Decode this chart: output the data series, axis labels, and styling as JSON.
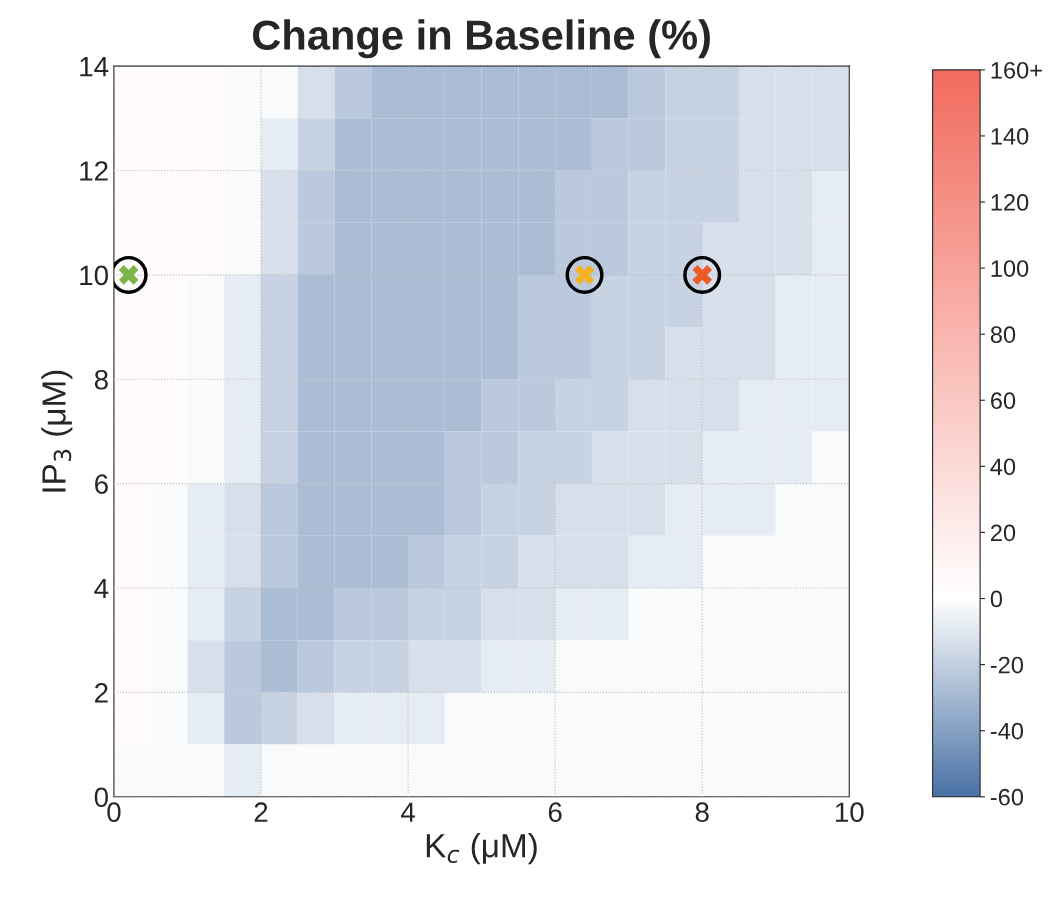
{
  "chart_data": {
    "type": "heatmap",
    "title": "Change in Baseline (%)",
    "xlabel": "K$_{c}$ (μM)",
    "ylabel": "IP$_{3}$ (μM)",
    "x": [
      0.25,
      0.75,
      1.25,
      1.75,
      2.25,
      2.75,
      3.25,
      3.75,
      4.25,
      4.75,
      5.25,
      5.75,
      6.25,
      6.75,
      7.25,
      7.75,
      8.25,
      8.75,
      9.25,
      9.75
    ],
    "y": [
      13.5,
      12.5,
      11.5,
      10.5,
      9.5,
      8.5,
      7.5,
      6.5,
      5.5,
      4.5,
      3.5,
      2.5,
      1.5,
      0.5
    ],
    "cells": [
      [
        4,
        4,
        4,
        -2,
        -2,
        -13,
        -23,
        -28,
        -28,
        -28,
        -28,
        -28,
        -28,
        -28,
        -23,
        -18,
        -18,
        -13,
        -13,
        -13
      ],
      [
        4,
        4,
        4,
        -2,
        -8,
        -18,
        -28,
        -28,
        -28,
        -28,
        -28,
        -28,
        -28,
        -23,
        -23,
        -18,
        -18,
        -13,
        -13,
        -13
      ],
      [
        4,
        4,
        4,
        -2,
        -13,
        -23,
        -28,
        -28,
        -28,
        -28,
        -28,
        -28,
        -23,
        -23,
        -18,
        -18,
        -18,
        -13,
        -13,
        -8
      ],
      [
        4,
        4,
        4,
        -2,
        -13,
        -23,
        -28,
        -28,
        -28,
        -28,
        -28,
        -28,
        -23,
        -23,
        -18,
        -18,
        -13,
        -13,
        -13,
        -8
      ],
      [
        4,
        4,
        -2,
        -8,
        -18,
        -28,
        -28,
        -28,
        -28,
        -28,
        -28,
        -23,
        -23,
        -18,
        -18,
        -18,
        -13,
        -13,
        -8,
        -8
      ],
      [
        4,
        4,
        -2,
        -8,
        -18,
        -28,
        -28,
        -28,
        -28,
        -28,
        -28,
        -23,
        -23,
        -18,
        -18,
        -13,
        -13,
        -13,
        -8,
        -8
      ],
      [
        4,
        4,
        -2,
        -8,
        -18,
        -28,
        -28,
        -28,
        -28,
        -28,
        -23,
        -23,
        -18,
        -18,
        -13,
        -13,
        -13,
        -8,
        -8,
        -8
      ],
      [
        4,
        4,
        -2,
        -8,
        -18,
        -28,
        -28,
        -28,
        -28,
        -23,
        -23,
        -18,
        -18,
        -13,
        -13,
        -13,
        -8,
        -8,
        -8,
        -2
      ],
      [
        4,
        -2,
        -8,
        -13,
        -23,
        -28,
        -28,
        -28,
        -28,
        -23,
        -18,
        -18,
        -13,
        -13,
        -13,
        -8,
        -8,
        -8,
        -2,
        -2
      ],
      [
        4,
        -2,
        -8,
        -13,
        -23,
        -28,
        -28,
        -28,
        -23,
        -18,
        -18,
        -13,
        -13,
        -13,
        -8,
        -8,
        -2,
        -2,
        -2,
        -2
      ],
      [
        4,
        -2,
        -8,
        -18,
        -28,
        -28,
        -23,
        -23,
        -18,
        -18,
        -13,
        -13,
        -8,
        -8,
        -2,
        -2,
        -2,
        -2,
        -2,
        -2
      ],
      [
        4,
        -2,
        -13,
        -23,
        -28,
        -23,
        -18,
        -18,
        -13,
        -13,
        -8,
        -8,
        -2,
        -2,
        -2,
        -2,
        -2,
        -2,
        -2,
        -2
      ],
      [
        4,
        -2,
        -8,
        -23,
        -18,
        -13,
        -8,
        -8,
        -8,
        -2,
        -2,
        -2,
        -2,
        -2,
        -2,
        -2,
        -2,
        -2,
        -2,
        -2
      ],
      [
        -2,
        -2,
        -2,
        -8,
        -2,
        -2,
        -2,
        -2,
        -2,
        -2,
        -2,
        -2,
        -2,
        -2,
        -2,
        -2,
        -2,
        -2,
        -2,
        -2
      ]
    ],
    "colors": [
      "#4a72a6",
      "#ffffff",
      "#f26b5e"
    ],
    "clim": [
      -60,
      160
    ],
    "cticks": [
      -60,
      -40,
      -20,
      0,
      20,
      40,
      60,
      80,
      100,
      120,
      140,
      {
        "value": 160,
        "label": "160+"
      }
    ],
    "series": [
      {
        "type": "scatter",
        "x": [
          0.2
        ],
        "values": [
          10
        ],
        "color": "#7ab648"
      },
      {
        "type": "scatter",
        "x": [
          6.4
        ],
        "values": [
          10
        ],
        "color": "#f5b324"
      },
      {
        "type": "scatter",
        "x": [
          8
        ],
        "values": [
          10
        ],
        "color": "#ee5a24"
      }
    ],
    "marker": "cross",
    "xlim": [
      0,
      10
    ],
    "xticks": [
      0,
      2,
      4,
      6,
      8,
      10
    ],
    "ylim": [
      0,
      14
    ],
    "yticks": [
      0,
      2,
      4,
      6,
      8,
      10,
      12,
      14
    ],
    "grid": true
  }
}
